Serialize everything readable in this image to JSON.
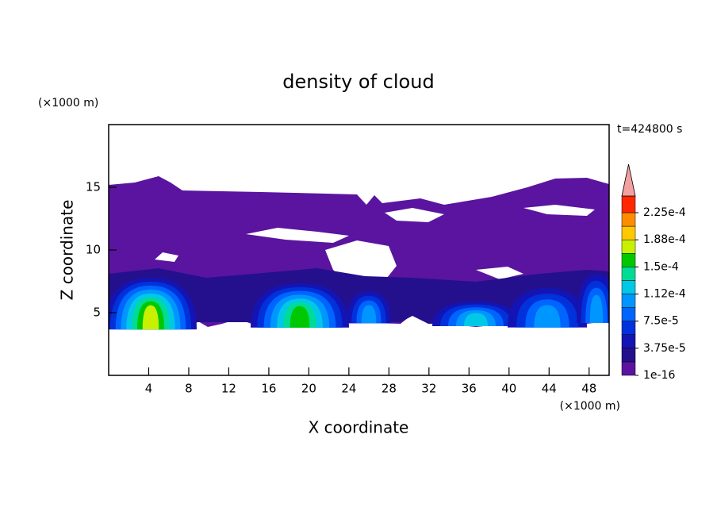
{
  "chart_data": {
    "type": "contour",
    "title": "density of cloud",
    "x_label": "X coordinate",
    "y_label": "Z coordinate",
    "x_unit": "(×1000 m)",
    "y_unit": "(×1000 m)",
    "annotation": "t=424800 s",
    "xlim": [
      0,
      50
    ],
    "xticks": [
      4,
      8,
      12,
      16,
      20,
      24,
      28,
      32,
      36,
      40,
      44,
      48
    ],
    "ylim": [
      0,
      20
    ],
    "yticks": [
      5,
      10,
      15
    ],
    "colorbar": {
      "levels": [
        1e-16,
        1.875e-05,
        3.75e-05,
        5.625e-05,
        7.5e-05,
        9.375e-05,
        0.0001125,
        0.00013125,
        0.00015,
        0.00016875,
        0.0001875,
        0.00020625,
        0.000225
      ],
      "colors": [
        "#5a14a0",
        "#24108c",
        "#1414b4",
        "#0032dc",
        "#0064ff",
        "#0096ff",
        "#00c8e6",
        "#00dc96",
        "#00c800",
        "#c8f000",
        "#ffc800",
        "#ff8c00",
        "#ff2800"
      ],
      "extend_color": "#f4a0a0",
      "ticks": [
        {
          "value": 1e-16,
          "label": "1e-16"
        },
        {
          "value": 3.75e-05,
          "label": "3.75e-5"
        },
        {
          "value": 7.5e-05,
          "label": "7.5e-5"
        },
        {
          "value": 0.0001125,
          "label": "1.12e-4"
        },
        {
          "value": 0.00015,
          "label": "1.5e-4"
        },
        {
          "value": 0.0001875,
          "label": "1.88e-4"
        },
        {
          "value": 0.000225,
          "label": "2.25e-4"
        }
      ]
    }
  }
}
